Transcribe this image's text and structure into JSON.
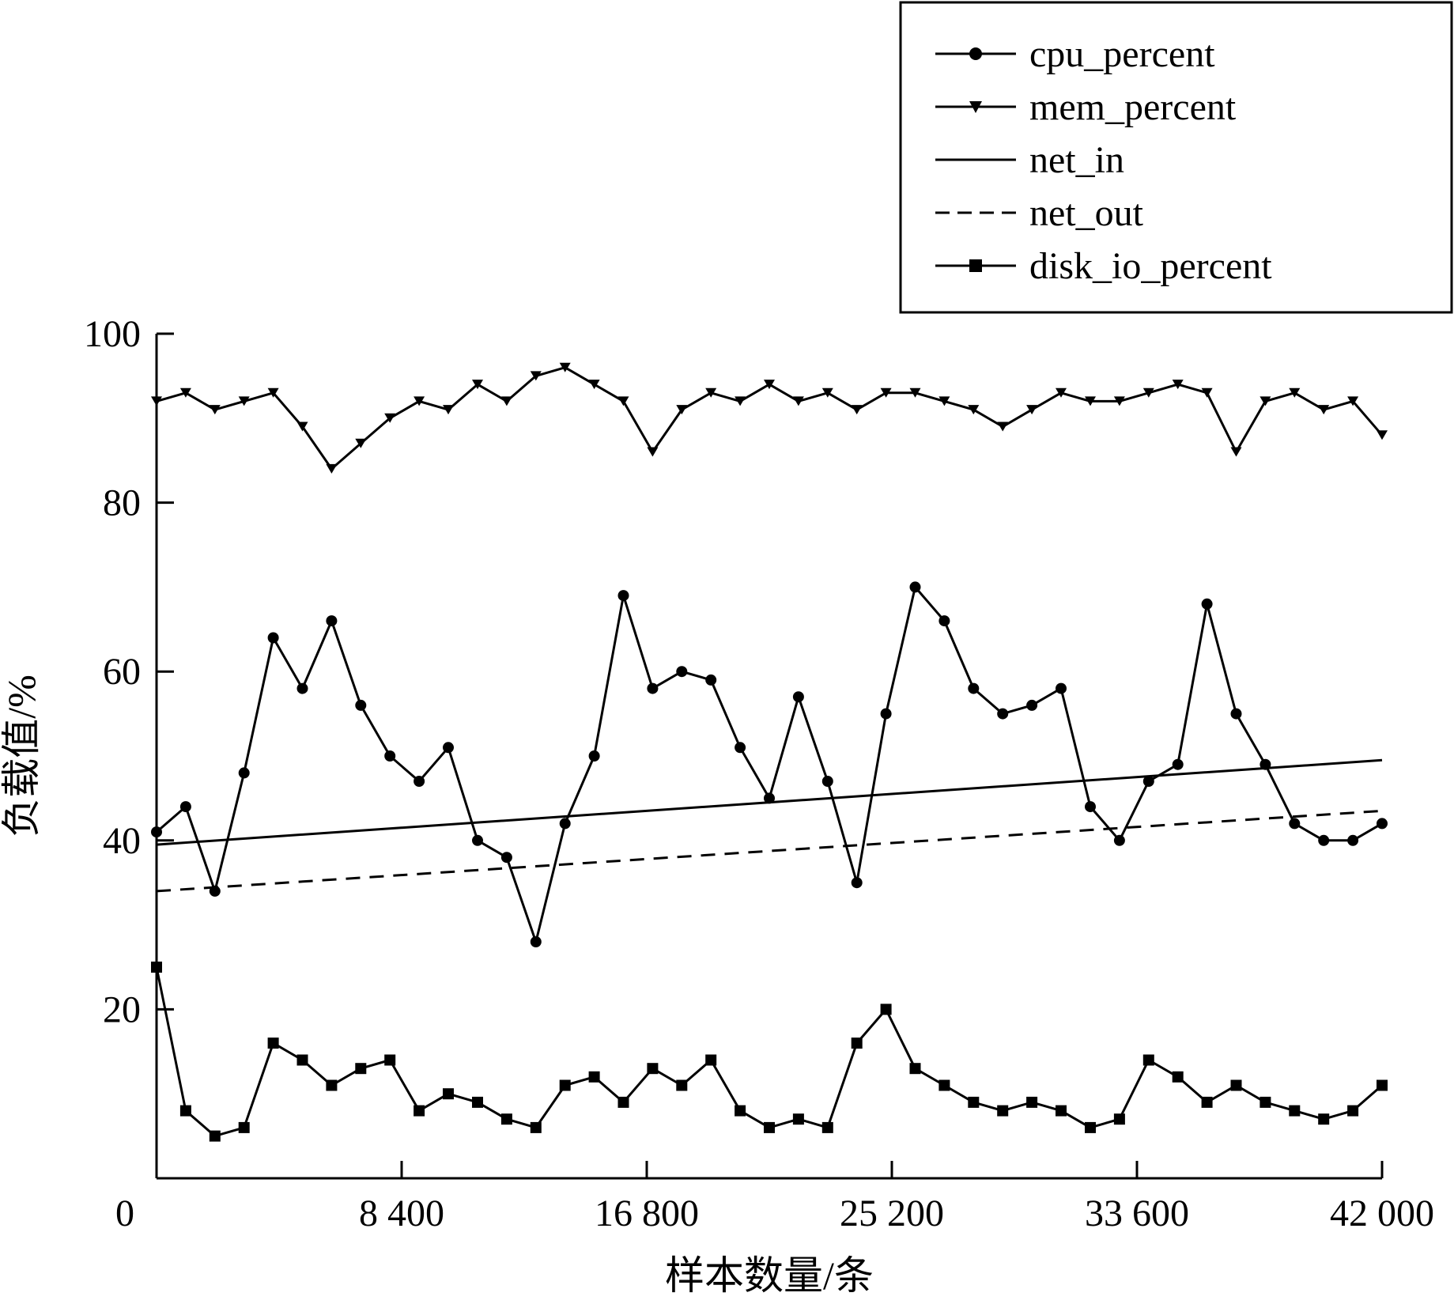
{
  "chart_data": {
    "type": "line",
    "xlabel": "样本数量/条",
    "ylabel": "负载值/%",
    "xlim": [
      0,
      42000
    ],
    "ylim": [
      0,
      100
    ],
    "xticks": [
      {
        "value": 0,
        "label": "0"
      },
      {
        "value": 8400,
        "label": "8 400"
      },
      {
        "value": 16800,
        "label": "16 800"
      },
      {
        "value": 25200,
        "label": "25 200"
      },
      {
        "value": 33600,
        "label": "33 600"
      },
      {
        "value": 42000,
        "label": "42 000"
      }
    ],
    "yticks": [
      {
        "value": 20,
        "label": "20"
      },
      {
        "value": 40,
        "label": "40"
      },
      {
        "value": 60,
        "label": "60"
      },
      {
        "value": 80,
        "label": "80"
      },
      {
        "value": 100,
        "label": "100"
      }
    ],
    "grid": false,
    "legend_position": "top-right, above plot",
    "series": [
      {
        "name": "cpu_percent",
        "marker": "circle",
        "line": "solid",
        "color": "#000000",
        "x": [
          0,
          1000,
          2000,
          3000,
          4000,
          5000,
          6000,
          7000,
          8000,
          9000,
          10000,
          11000,
          12000,
          13000,
          14000,
          15000,
          16000,
          17000,
          18000,
          19000,
          20000,
          21000,
          22000,
          23000,
          24000,
          25000,
          26000,
          27000,
          28000,
          29000,
          30000,
          31000,
          32000,
          33000,
          34000,
          35000,
          36000,
          37000,
          38000,
          39000,
          40000,
          41000,
          42000
        ],
        "y": [
          41,
          44,
          34,
          48,
          64,
          58,
          66,
          56,
          50,
          47,
          51,
          40,
          38,
          28,
          42,
          50,
          69,
          58,
          60,
          59,
          51,
          45,
          57,
          47,
          35,
          55,
          70,
          66,
          58,
          55,
          56,
          58,
          44,
          40,
          47,
          49,
          68,
          55,
          49,
          42,
          40,
          40,
          42
        ]
      },
      {
        "name": "mem_percent",
        "marker": "triangle-down",
        "line": "solid",
        "color": "#000000",
        "x": [
          0,
          1000,
          2000,
          3000,
          4000,
          5000,
          6000,
          7000,
          8000,
          9000,
          10000,
          11000,
          12000,
          13000,
          14000,
          15000,
          16000,
          17000,
          18000,
          19000,
          20000,
          21000,
          22000,
          23000,
          24000,
          25000,
          26000,
          27000,
          28000,
          29000,
          30000,
          31000,
          32000,
          33000,
          34000,
          35000,
          36000,
          37000,
          38000,
          39000,
          40000,
          41000,
          42000
        ],
        "y": [
          92,
          93,
          91,
          92,
          93,
          89,
          84,
          87,
          90,
          92,
          91,
          94,
          92,
          95,
          96,
          94,
          92,
          86,
          91,
          93,
          92,
          94,
          92,
          93,
          91,
          93,
          93,
          92,
          91,
          89,
          91,
          93,
          92,
          92,
          93,
          94,
          93,
          86,
          92,
          93,
          91,
          92,
          88
        ]
      },
      {
        "name": "net_in",
        "marker": "none",
        "line": "solid",
        "color": "#000000",
        "x": [
          0,
          42000
        ],
        "y": [
          39.5,
          49.5
        ]
      },
      {
        "name": "net_out",
        "marker": "none",
        "line": "dashed",
        "color": "#000000",
        "x": [
          0,
          42000
        ],
        "y": [
          34,
          43.5
        ]
      },
      {
        "name": "disk_io_percent",
        "marker": "square",
        "line": "solid",
        "color": "#000000",
        "x": [
          0,
          1000,
          2000,
          3000,
          4000,
          5000,
          6000,
          7000,
          8000,
          9000,
          10000,
          11000,
          12000,
          13000,
          14000,
          15000,
          16000,
          17000,
          18000,
          19000,
          20000,
          21000,
          22000,
          23000,
          24000,
          25000,
          26000,
          27000,
          28000,
          29000,
          30000,
          31000,
          32000,
          33000,
          34000,
          35000,
          36000,
          37000,
          38000,
          39000,
          40000,
          41000,
          42000
        ],
        "y": [
          25,
          8,
          5,
          6,
          16,
          14,
          11,
          13,
          14,
          8,
          10,
          9,
          7,
          6,
          11,
          12,
          9,
          13,
          11,
          14,
          8,
          6,
          7,
          6,
          16,
          20,
          13,
          11,
          9,
          8,
          9,
          8,
          6,
          7,
          14,
          12,
          9,
          11,
          9,
          8,
          7,
          8,
          11
        ]
      }
    ]
  }
}
